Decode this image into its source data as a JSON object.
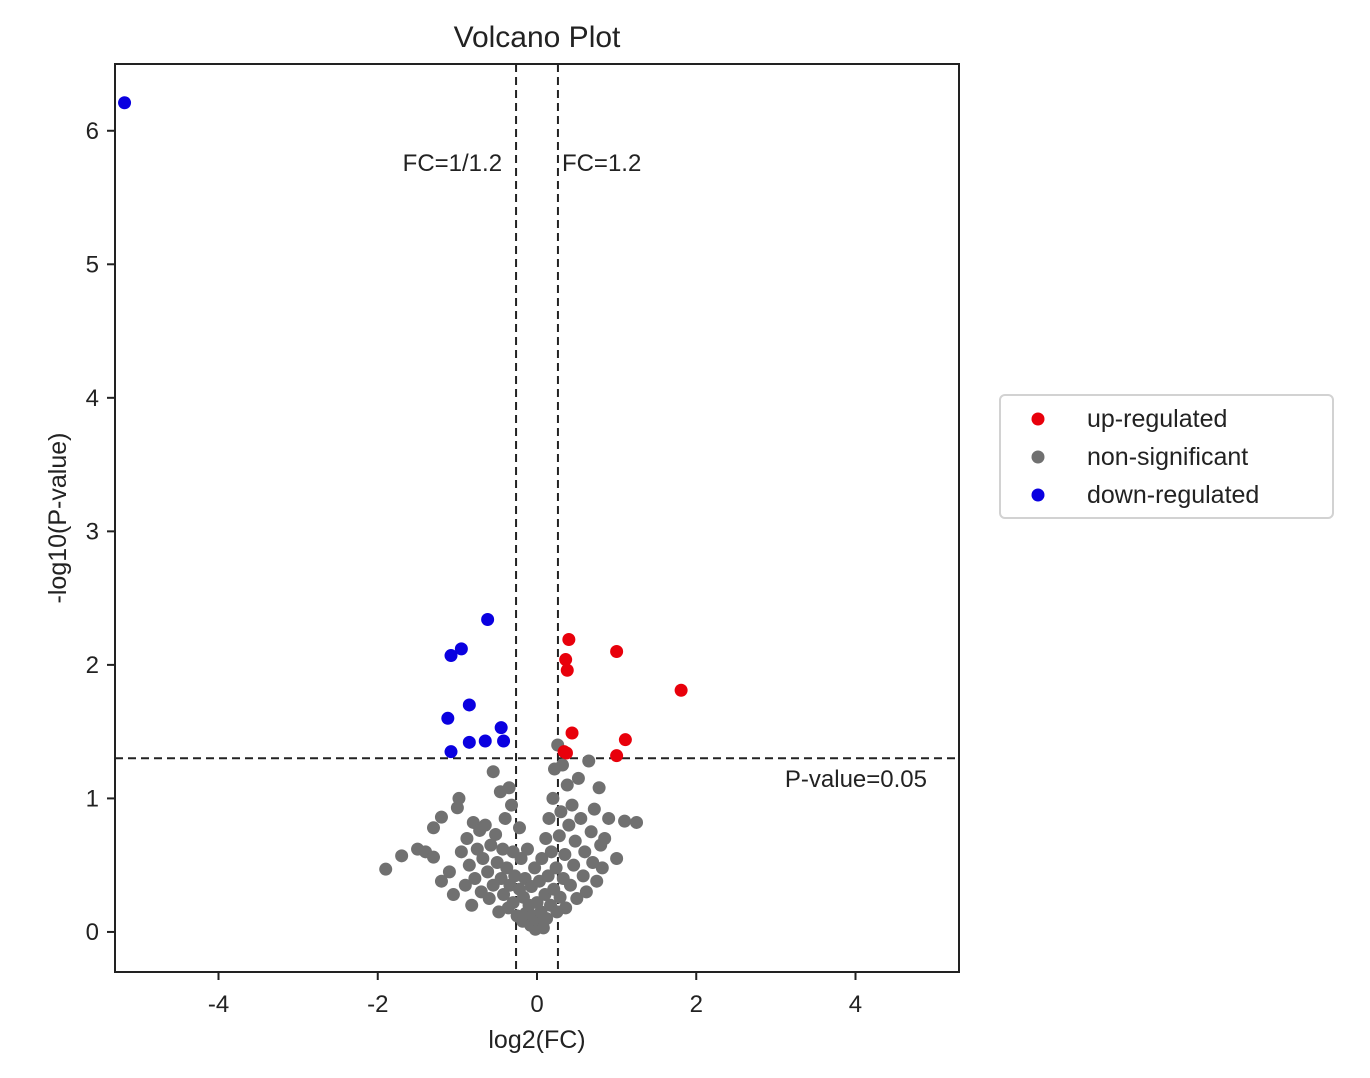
{
  "chart_data": {
    "type": "scatter",
    "title": "Volcano Plot",
    "xlabel": "log2(FC)",
    "ylabel": "-log10(P-value)",
    "xlim": [
      -5.3,
      5.3
    ],
    "ylim": [
      -0.3,
      6.5
    ],
    "xticks": [
      -4,
      -2,
      0,
      2,
      4
    ],
    "xtick_labels": [
      "-4",
      "-2",
      "0",
      "2",
      "4"
    ],
    "yticks": [
      0,
      1,
      2,
      3,
      4,
      5,
      6
    ],
    "ytick_labels": [
      "0",
      "1",
      "2",
      "3",
      "4",
      "5",
      "6"
    ],
    "grid": false,
    "legend_position": "outside-right",
    "thresholds": {
      "vertical": [
        {
          "x": -0.263,
          "label": "FC=1/1.2"
        },
        {
          "x": 0.263,
          "label": "FC=1.2"
        }
      ],
      "horizontal": [
        {
          "y": 1.301,
          "label": "P-value=0.05"
        }
      ]
    },
    "series": [
      {
        "name": "up-regulated",
        "color": "#e8000b",
        "points": [
          [
            0.4,
            2.19
          ],
          [
            1.0,
            2.1
          ],
          [
            0.36,
            2.04
          ],
          [
            0.38,
            1.96
          ],
          [
            1.81,
            1.81
          ],
          [
            0.44,
            1.49
          ],
          [
            1.11,
            1.44
          ],
          [
            0.34,
            1.35
          ],
          [
            0.37,
            1.34
          ],
          [
            1.0,
            1.32
          ]
        ]
      },
      {
        "name": "non-significant",
        "color": "#707070",
        "points": [
          [
            -1.9,
            0.47
          ],
          [
            -1.7,
            0.57
          ],
          [
            -1.5,
            0.62
          ],
          [
            -1.4,
            0.6
          ],
          [
            -1.3,
            0.56
          ],
          [
            -1.3,
            0.78
          ],
          [
            -1.2,
            0.86
          ],
          [
            -1.2,
            0.38
          ],
          [
            -1.1,
            0.45
          ],
          [
            -1.05,
            0.28
          ],
          [
            -1.0,
            0.93
          ],
          [
            -0.98,
            1.0
          ],
          [
            -0.95,
            0.6
          ],
          [
            -0.9,
            0.35
          ],
          [
            -0.88,
            0.7
          ],
          [
            -0.85,
            0.5
          ],
          [
            -0.82,
            0.2
          ],
          [
            -0.8,
            0.82
          ],
          [
            -0.78,
            0.4
          ],
          [
            -0.75,
            0.62
          ],
          [
            -0.72,
            0.76
          ],
          [
            -0.7,
            0.3
          ],
          [
            -0.68,
            0.55
          ],
          [
            -0.65,
            0.8
          ],
          [
            -0.62,
            0.45
          ],
          [
            -0.6,
            0.25
          ],
          [
            -0.58,
            0.65
          ],
          [
            -0.55,
            1.2
          ],
          [
            -0.55,
            0.35
          ],
          [
            -0.52,
            0.73
          ],
          [
            -0.5,
            0.52
          ],
          [
            -0.48,
            0.15
          ],
          [
            -0.46,
            1.05
          ],
          [
            -0.45,
            0.4
          ],
          [
            -0.43,
            0.62
          ],
          [
            -0.42,
            0.28
          ],
          [
            -0.4,
            0.85
          ],
          [
            -0.38,
            0.48
          ],
          [
            -0.36,
            0.18
          ],
          [
            -0.35,
            1.08
          ],
          [
            -0.34,
            0.35
          ],
          [
            -0.32,
            0.95
          ],
          [
            -0.3,
            0.22
          ],
          [
            -0.3,
            0.6
          ],
          [
            -0.28,
            0.42
          ],
          [
            -0.25,
            0.12
          ],
          [
            -0.22,
            0.78
          ],
          [
            -0.22,
            0.32
          ],
          [
            -0.2,
            0.55
          ],
          [
            -0.18,
            0.08
          ],
          [
            -0.17,
            0.26
          ],
          [
            -0.15,
            0.4
          ],
          [
            -0.14,
            0.14
          ],
          [
            -0.12,
            0.62
          ],
          [
            -0.1,
            0.2
          ],
          [
            -0.08,
            0.05
          ],
          [
            -0.07,
            0.34
          ],
          [
            -0.05,
            0.12
          ],
          [
            -0.03,
            0.48
          ],
          [
            -0.02,
            0.02
          ],
          [
            0.0,
            0.22
          ],
          [
            0.02,
            0.08
          ],
          [
            0.03,
            0.38
          ],
          [
            0.05,
            0.15
          ],
          [
            0.06,
            0.55
          ],
          [
            0.08,
            0.03
          ],
          [
            0.1,
            0.28
          ],
          [
            0.11,
            0.7
          ],
          [
            0.12,
            0.1
          ],
          [
            0.14,
            0.42
          ],
          [
            0.15,
            0.85
          ],
          [
            0.17,
            0.2
          ],
          [
            0.18,
            0.6
          ],
          [
            0.2,
            1.0
          ],
          [
            0.21,
            0.32
          ],
          [
            0.22,
            1.22
          ],
          [
            0.24,
            0.48
          ],
          [
            0.25,
            0.15
          ],
          [
            0.26,
            1.4
          ],
          [
            0.28,
            0.72
          ],
          [
            0.29,
            0.26
          ],
          [
            0.3,
            0.9
          ],
          [
            0.32,
            1.25
          ],
          [
            0.33,
            0.4
          ],
          [
            0.35,
            0.58
          ],
          [
            0.36,
            0.18
          ],
          [
            0.38,
            1.1
          ],
          [
            0.4,
            0.8
          ],
          [
            0.42,
            0.35
          ],
          [
            0.44,
            0.95
          ],
          [
            0.46,
            0.5
          ],
          [
            0.48,
            0.68
          ],
          [
            0.5,
            0.25
          ],
          [
            0.52,
            1.15
          ],
          [
            0.55,
            0.85
          ],
          [
            0.58,
            0.42
          ],
          [
            0.6,
            0.6
          ],
          [
            0.62,
            0.3
          ],
          [
            0.65,
            1.28
          ],
          [
            0.68,
            0.75
          ],
          [
            0.7,
            0.52
          ],
          [
            0.72,
            0.92
          ],
          [
            0.75,
            0.38
          ],
          [
            0.78,
            1.08
          ],
          [
            0.8,
            0.65
          ],
          [
            0.82,
            0.48
          ],
          [
            0.85,
            0.7
          ],
          [
            0.9,
            0.85
          ],
          [
            1.0,
            0.55
          ],
          [
            1.1,
            0.83
          ],
          [
            1.25,
            0.82
          ]
        ]
      },
      {
        "name": "down-regulated",
        "color": "#0a00e0",
        "points": [
          [
            -5.18,
            6.21
          ],
          [
            -0.62,
            2.34
          ],
          [
            -0.95,
            2.12
          ],
          [
            -1.08,
            2.07
          ],
          [
            -0.85,
            1.7
          ],
          [
            -1.12,
            1.6
          ],
          [
            -0.45,
            1.53
          ],
          [
            -0.42,
            1.43
          ],
          [
            -0.65,
            1.43
          ],
          [
            -0.85,
            1.42
          ],
          [
            -1.08,
            1.35
          ]
        ]
      }
    ]
  }
}
